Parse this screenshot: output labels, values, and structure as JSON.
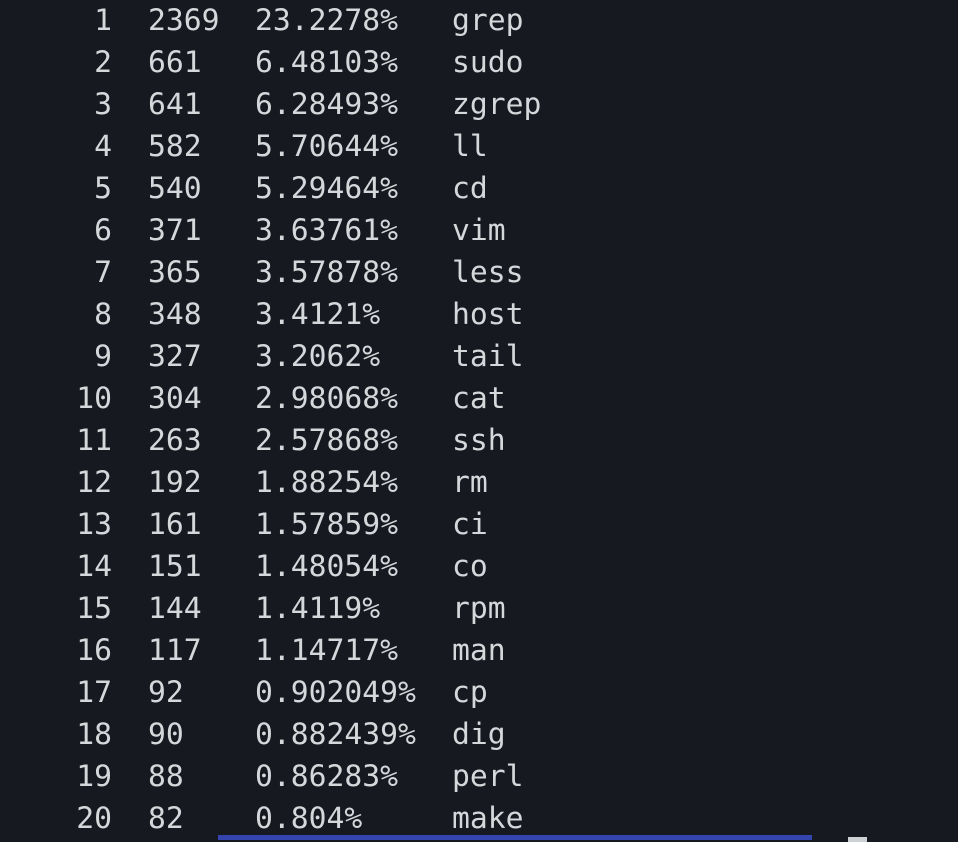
{
  "terminal": {
    "description": "command history frequency listing",
    "columns": [
      "rank",
      "count",
      "percent",
      "command"
    ],
    "rows": [
      {
        "rank": "1",
        "count": "2369",
        "percent": "23.2278%",
        "command": "grep"
      },
      {
        "rank": "2",
        "count": "661",
        "percent": "6.48103%",
        "command": "sudo"
      },
      {
        "rank": "3",
        "count": "641",
        "percent": "6.28493%",
        "command": "zgrep"
      },
      {
        "rank": "4",
        "count": "582",
        "percent": "5.70644%",
        "command": "ll"
      },
      {
        "rank": "5",
        "count": "540",
        "percent": "5.29464%",
        "command": "cd"
      },
      {
        "rank": "6",
        "count": "371",
        "percent": "3.63761%",
        "command": "vim"
      },
      {
        "rank": "7",
        "count": "365",
        "percent": "3.57878%",
        "command": "less"
      },
      {
        "rank": "8",
        "count": "348",
        "percent": "3.4121%",
        "command": "host"
      },
      {
        "rank": "9",
        "count": "327",
        "percent": "3.2062%",
        "command": "tail"
      },
      {
        "rank": "10",
        "count": "304",
        "percent": "2.98068%",
        "command": "cat"
      },
      {
        "rank": "11",
        "count": "263",
        "percent": "2.57868%",
        "command": "ssh"
      },
      {
        "rank": "12",
        "count": "192",
        "percent": "1.88254%",
        "command": "rm"
      },
      {
        "rank": "13",
        "count": "161",
        "percent": "1.57859%",
        "command": "ci"
      },
      {
        "rank": "14",
        "count": "151",
        "percent": "1.48054%",
        "command": "co"
      },
      {
        "rank": "15",
        "count": "144",
        "percent": "1.4119%",
        "command": "rpm"
      },
      {
        "rank": "16",
        "count": "117",
        "percent": "1.14717%",
        "command": "man"
      },
      {
        "rank": "17",
        "count": "92",
        "percent": "0.902049%",
        "command": "cp"
      },
      {
        "rank": "18",
        "count": "90",
        "percent": "0.882439%",
        "command": "dig"
      },
      {
        "rank": "19",
        "count": "88",
        "percent": "0.86283%",
        "command": "perl"
      },
      {
        "rank": "20",
        "count": "82",
        "percent": "0.804%",
        "command": "make"
      }
    ],
    "colors": {
      "background": "#161a20",
      "text": "#d5d8da",
      "selection_bar": "#3545b0",
      "scroll_thumb": "#ced1d4"
    }
  }
}
